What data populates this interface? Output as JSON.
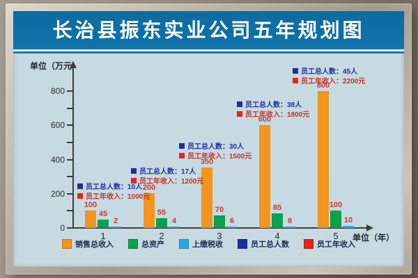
{
  "poster": {
    "title": "长治县振东实业公司五年规划图"
  },
  "chart_data": {
    "type": "bar",
    "title": "长治县振东实业公司五年规划图",
    "y_axis_label": "单位（万元）",
    "x_axis_label": "单位（年）",
    "categories": [
      "1",
      "2",
      "3",
      "4",
      "5"
    ],
    "y_ticks_labeled": [
      0,
      200,
      400,
      600,
      800
    ],
    "y_tick_step": 100,
    "ylim": [
      0,
      900
    ],
    "grid": false,
    "legend_position": "bottom",
    "series": [
      {
        "key": "sales",
        "name": "销售总收入",
        "color": "#f3941d",
        "values": [
          100,
          200,
          350,
          600,
          800
        ]
      },
      {
        "key": "assets",
        "name": "总资产",
        "color": "#0ba04e",
        "values": [
          45,
          55,
          70,
          85,
          100
        ]
      },
      {
        "key": "tax",
        "name": "上缴税收",
        "color": "#2aa7e2",
        "values": [
          2,
          4,
          6,
          8,
          10
        ]
      }
    ],
    "annotations": [
      {
        "employees": "员工总人数：10人",
        "income": "员工年收入：1000元"
      },
      {
        "employees": "员工总人数：17人",
        "income": "员工年收入：1200元"
      },
      {
        "employees": "员工总人数：30人",
        "income": "员工年收入：1500元"
      },
      {
        "employees": "员工总人数：38人",
        "income": "员工年收入：1800元"
      },
      {
        "employees": "员工总人数：45人",
        "income": "员工年收入：2200元"
      }
    ],
    "annotation_colors": {
      "employees": "#1e2f9e",
      "income": "#e8231d"
    },
    "value_label_color": "#c93a31",
    "legend": [
      {
        "key": "sales",
        "label": "销售总收入",
        "color": "#f3941d"
      },
      {
        "key": "assets",
        "label": "总资产",
        "color": "#0ba04e"
      },
      {
        "key": "tax",
        "label": "上缴税收",
        "color": "#2aa7e2"
      },
      {
        "key": "employees",
        "label": "员工总人数",
        "color": "#1e2f9e"
      },
      {
        "key": "income",
        "label": "员工年收入",
        "color": "#e8231d"
      }
    ]
  }
}
